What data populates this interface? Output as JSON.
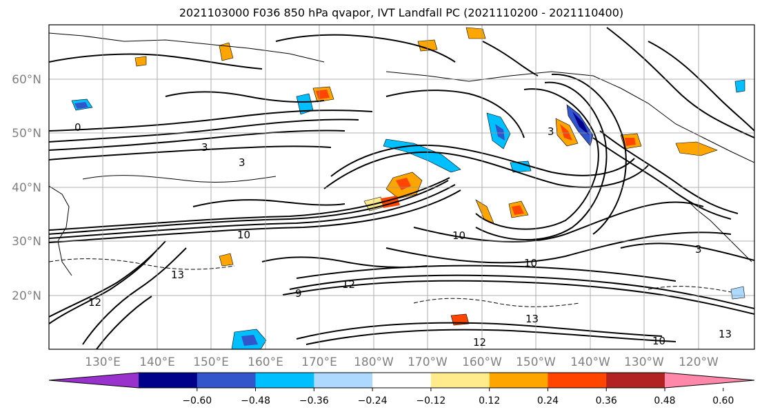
{
  "title": "2021103000 F036 850 hPa qvapor, IVT Landfall PC (2021110200 - 2021110400)",
  "axes": {
    "lat_labels": [
      "60°N",
      "50°N",
      "40°N",
      "30°N",
      "20°N"
    ],
    "lon_labels": [
      "130°E",
      "140°E",
      "150°E",
      "160°E",
      "170°E",
      "180°W",
      "170°W",
      "160°W",
      "150°W",
      "140°W",
      "130°W",
      "120°W"
    ],
    "label_color": "#808080",
    "grid": true
  },
  "colorbar": {
    "colors": [
      "#9932cc",
      "#00008b",
      "#3355cc",
      "#00bfff",
      "#add8ff",
      "#ffffff",
      "#ffeb8c",
      "#ffa500",
      "#ff4500",
      "#b22222",
      "#ff88aa"
    ],
    "tick_labels": [
      "−0.60",
      "−0.48",
      "−0.36",
      "−0.24",
      "−0.12",
      "0.12",
      "0.24",
      "0.36",
      "0.48",
      "0.60"
    ],
    "extend": "both"
  },
  "contour_labels": [
    "3",
    "3",
    "10",
    "10",
    "3",
    "9",
    "12",
    "13",
    "10",
    "13",
    "12",
    "3",
    "12",
    "10",
    "13",
    "0"
  ]
}
